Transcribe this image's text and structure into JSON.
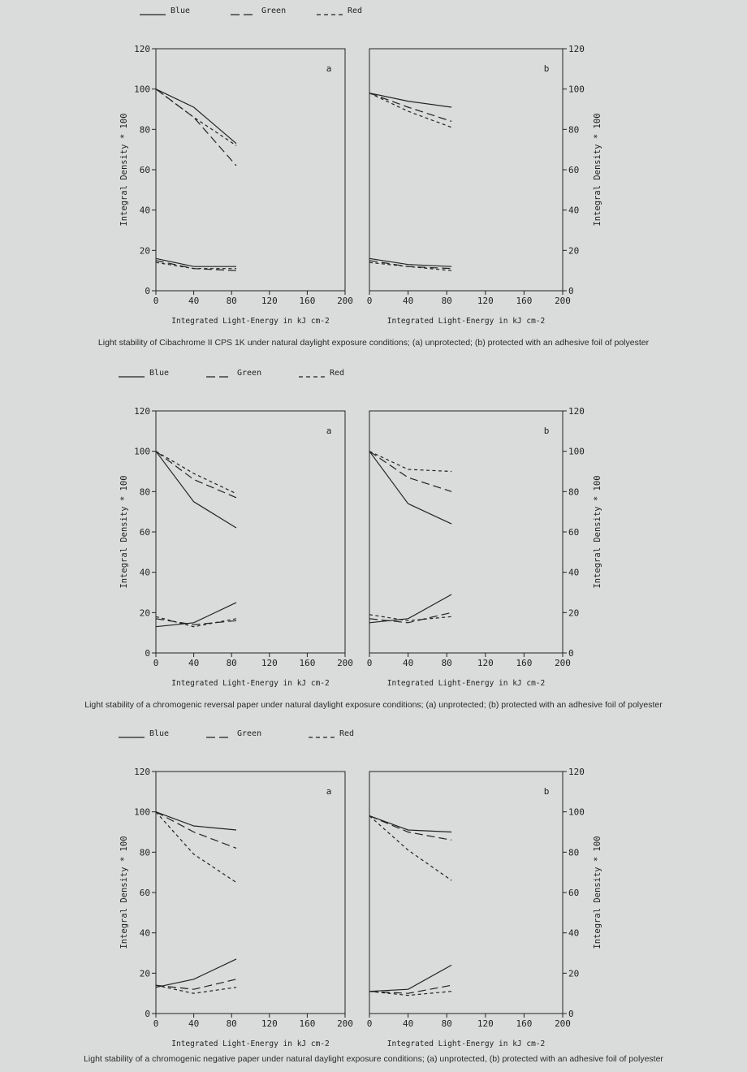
{
  "legend": [
    {
      "name": "Blue",
      "dash": "solid"
    },
    {
      "name": "Green",
      "dash": "long"
    },
    {
      "name": "Red",
      "dash": "short"
    }
  ],
  "captions": [
    "Light stability of Cibachrome II CPS 1K under natural daylight exposure conditions; (a) unprotected; (b) protected with an adhesive foil of polyester",
    "Light stability of a chromogenic reversal paper under natural daylight exposure conditions; (a) unprotected; (b) protected with an adhesive foil of polyester",
    "Light stability of a chromogenic negative paper under natural daylight exposure conditions; (a) unprotected, (b) protected with an adhesive foil of polyester"
  ],
  "chart_data": [
    {
      "type": "line",
      "figure": 1,
      "panel": "a",
      "xlabel": "Integrated Light-Energy in kJ cm-2",
      "ylabel": "Integral Density * 100",
      "xlim": [
        0,
        200
      ],
      "ylim": [
        0,
        120
      ],
      "xticks": [
        0,
        40,
        80,
        120,
        160,
        200
      ],
      "yticks": [
        0,
        20,
        40,
        60,
        80,
        100,
        120
      ],
      "series": [
        {
          "name": "Blue",
          "x": [
            0,
            40,
            85
          ],
          "y": [
            100,
            91,
            73
          ]
        },
        {
          "name": "Green",
          "x": [
            0,
            40,
            85
          ],
          "y": [
            100,
            86,
            62
          ]
        },
        {
          "name": "Red",
          "x": [
            0,
            40,
            85
          ],
          "y": [
            100,
            86,
            72
          ]
        },
        {
          "name": "Blue",
          "x": [
            0,
            40,
            85
          ],
          "y": [
            16,
            12,
            12
          ]
        },
        {
          "name": "Green",
          "x": [
            0,
            40,
            85
          ],
          "y": [
            15,
            11,
            10
          ]
        },
        {
          "name": "Red",
          "x": [
            0,
            40,
            85
          ],
          "y": [
            14,
            11,
            11
          ]
        }
      ]
    },
    {
      "type": "line",
      "figure": 1,
      "panel": "b",
      "xlabel": "Integrated Light-Energy in kJ cm-2",
      "ylabel": "Integral Density * 100",
      "xlim": [
        0,
        200
      ],
      "ylim": [
        0,
        120
      ],
      "xticks": [
        0,
        40,
        80,
        120,
        160,
        200
      ],
      "yticks": [
        0,
        20,
        40,
        60,
        80,
        100,
        120
      ],
      "series": [
        {
          "name": "Blue",
          "x": [
            0,
            40,
            85
          ],
          "y": [
            98,
            94,
            91
          ]
        },
        {
          "name": "Green",
          "x": [
            0,
            40,
            85
          ],
          "y": [
            98,
            91,
            84
          ]
        },
        {
          "name": "Red",
          "x": [
            0,
            40,
            85
          ],
          "y": [
            98,
            89,
            81
          ]
        },
        {
          "name": "Blue",
          "x": [
            0,
            40,
            85
          ],
          "y": [
            16,
            13,
            12
          ]
        },
        {
          "name": "Green",
          "x": [
            0,
            40,
            85
          ],
          "y": [
            15,
            12,
            11
          ]
        },
        {
          "name": "Red",
          "x": [
            0,
            40,
            85
          ],
          "y": [
            14,
            12,
            10
          ]
        }
      ]
    },
    {
      "type": "line",
      "figure": 2,
      "panel": "a",
      "xlabel": "Integrated Light-Energy in kJ cm-2",
      "ylabel": "Integral Density * 100",
      "xlim": [
        0,
        200
      ],
      "ylim": [
        0,
        120
      ],
      "xticks": [
        0,
        40,
        80,
        120,
        160,
        200
      ],
      "yticks": [
        0,
        20,
        40,
        60,
        80,
        100,
        120
      ],
      "series": [
        {
          "name": "Blue",
          "x": [
            0,
            40,
            85
          ],
          "y": [
            100,
            75,
            62
          ]
        },
        {
          "name": "Green",
          "x": [
            0,
            40,
            85
          ],
          "y": [
            100,
            86,
            77
          ]
        },
        {
          "name": "Red",
          "x": [
            0,
            40,
            85
          ],
          "y": [
            100,
            89,
            79
          ]
        },
        {
          "name": "Blue",
          "x": [
            0,
            40,
            85
          ],
          "y": [
            13,
            15,
            25
          ]
        },
        {
          "name": "Green",
          "x": [
            0,
            40,
            85
          ],
          "y": [
            17,
            14,
            16
          ]
        },
        {
          "name": "Red",
          "x": [
            0,
            40,
            85
          ],
          "y": [
            18,
            13,
            17
          ]
        }
      ]
    },
    {
      "type": "line",
      "figure": 2,
      "panel": "b",
      "xlabel": "Integrated Light-Energy in kJ cm-2",
      "ylabel": "Integral Density * 100",
      "xlim": [
        0,
        200
      ],
      "ylim": [
        0,
        120
      ],
      "xticks": [
        0,
        40,
        80,
        120,
        160,
        200
      ],
      "yticks": [
        0,
        20,
        40,
        60,
        80,
        100,
        120
      ],
      "series": [
        {
          "name": "Blue",
          "x": [
            0,
            40,
            85
          ],
          "y": [
            100,
            74,
            64
          ]
        },
        {
          "name": "Green",
          "x": [
            0,
            40,
            85
          ],
          "y": [
            100,
            87,
            80
          ]
        },
        {
          "name": "Red",
          "x": [
            0,
            40,
            85
          ],
          "y": [
            100,
            91,
            90
          ]
        },
        {
          "name": "Blue",
          "x": [
            0,
            40,
            85
          ],
          "y": [
            15,
            17,
            29
          ]
        },
        {
          "name": "Green",
          "x": [
            0,
            40,
            85
          ],
          "y": [
            17,
            15,
            20
          ]
        },
        {
          "name": "Red",
          "x": [
            0,
            40,
            85
          ],
          "y": [
            19,
            16,
            18
          ]
        }
      ]
    },
    {
      "type": "line",
      "figure": 3,
      "panel": "a",
      "xlabel": "Integrated Light-Energy in kJ cm-2",
      "ylabel": "Integral Density * 100",
      "xlim": [
        0,
        200
      ],
      "ylim": [
        0,
        120
      ],
      "xticks": [
        0,
        40,
        80,
        120,
        160,
        200
      ],
      "yticks": [
        0,
        20,
        40,
        60,
        80,
        100,
        120
      ],
      "series": [
        {
          "name": "Blue",
          "x": [
            0,
            40,
            85
          ],
          "y": [
            100,
            93,
            91
          ]
        },
        {
          "name": "Green",
          "x": [
            0,
            40,
            85
          ],
          "y": [
            100,
            90,
            82
          ]
        },
        {
          "name": "Red",
          "x": [
            0,
            40,
            85
          ],
          "y": [
            100,
            79,
            65
          ]
        },
        {
          "name": "Blue",
          "x": [
            0,
            40,
            85
          ],
          "y": [
            13,
            17,
            27
          ]
        },
        {
          "name": "Green",
          "x": [
            0,
            40,
            85
          ],
          "y": [
            14,
            12,
            17
          ]
        },
        {
          "name": "Red",
          "x": [
            0,
            40,
            85
          ],
          "y": [
            14,
            10,
            13
          ]
        }
      ]
    },
    {
      "type": "line",
      "figure": 3,
      "panel": "b",
      "xlabel": "Integrated Light-Energy in kJ cm-2",
      "ylabel": "Integral Density * 100",
      "xlim": [
        0,
        200
      ],
      "ylim": [
        0,
        120
      ],
      "xticks": [
        0,
        40,
        80,
        120,
        160,
        200
      ],
      "yticks": [
        0,
        20,
        40,
        60,
        80,
        100,
        120
      ],
      "series": [
        {
          "name": "Blue",
          "x": [
            0,
            40,
            85
          ],
          "y": [
            98,
            91,
            90
          ]
        },
        {
          "name": "Green",
          "x": [
            0,
            40,
            85
          ],
          "y": [
            98,
            90,
            86
          ]
        },
        {
          "name": "Red",
          "x": [
            0,
            40,
            85
          ],
          "y": [
            98,
            81,
            66
          ]
        },
        {
          "name": "Blue",
          "x": [
            0,
            40,
            85
          ],
          "y": [
            11,
            12,
            24
          ]
        },
        {
          "name": "Green",
          "x": [
            0,
            40,
            85
          ],
          "y": [
            11,
            10,
            14
          ]
        },
        {
          "name": "Red",
          "x": [
            0,
            40,
            85
          ],
          "y": [
            11,
            9,
            11
          ]
        }
      ]
    }
  ]
}
